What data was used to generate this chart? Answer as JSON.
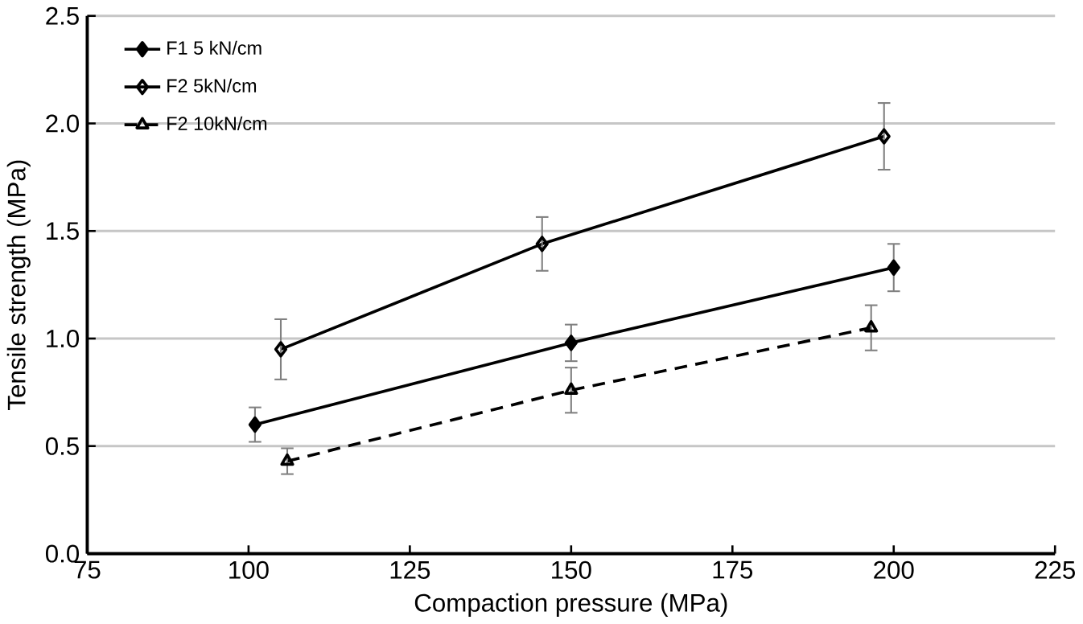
{
  "chart_data": {
    "type": "line",
    "xlabel": "Compaction pressure (MPa)",
    "ylabel": "Tensile strength (MPa)",
    "xlim": [
      75,
      225
    ],
    "xticks": [
      75,
      100,
      125,
      150,
      175,
      200,
      225
    ],
    "ylim": [
      0,
      2.5
    ],
    "yticks": [
      {
        "value": 0,
        "label": "0.0"
      },
      {
        "value": 0.5,
        "label": "0.5"
      },
      {
        "value": 1,
        "label": "1.0"
      },
      {
        "value": 1.5,
        "label": "1.5"
      },
      {
        "value": 2,
        "label": "2.0"
      },
      {
        "value": 2.5,
        "label": "2.5"
      }
    ],
    "grid": "y",
    "legend": "top left",
    "series": [
      {
        "name": "F1 5 kN/cm",
        "color": "#000000",
        "marker": "diamond",
        "line_style": "solid",
        "x": [
          101,
          150,
          200
        ],
        "values": [
          0.6,
          0.98,
          1.33
        ],
        "errors": [
          0.08,
          0.085,
          0.11
        ]
      },
      {
        "name": "F2 5kN/cm",
        "color": "#000000",
        "marker": "diamond_open",
        "line_style": "solid",
        "x": [
          105,
          145.5,
          198.5
        ],
        "values": [
          0.95,
          1.44,
          1.94
        ],
        "errors": [
          0.14,
          0.125,
          0.155
        ]
      },
      {
        "name": "F2 10kN/cm",
        "color": "#000000",
        "marker": "triangle_open",
        "line_style": "dashed",
        "x": [
          106,
          150,
          196.5
        ],
        "values": [
          0.43,
          0.76,
          1.05
        ],
        "errors": [
          0.06,
          0.105,
          0.105
        ]
      }
    ]
  }
}
